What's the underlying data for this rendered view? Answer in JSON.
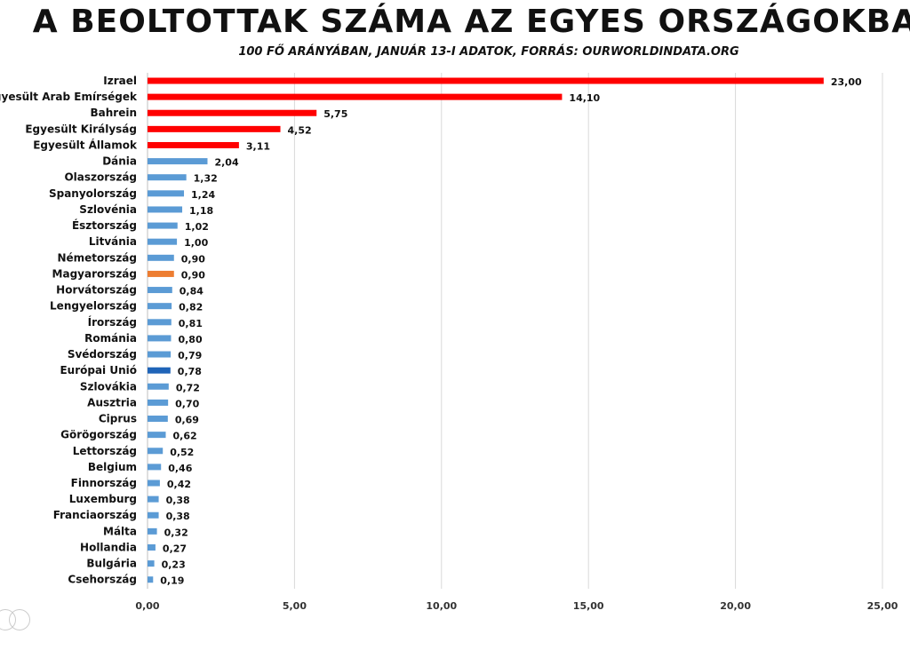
{
  "header": {
    "title": "A BEOLTOTTAK SZÁMA AZ EGYES ORSZÁGOKBAN",
    "subtitle": "100 FŐ ARÁNYÁBAN, JANUÁR 13-I ADATOK, FORRÁS: OURWORLDINDATA.ORG"
  },
  "chart_data": {
    "type": "bar",
    "orientation": "horizontal",
    "title": "A BEOLTOTTAK SZÁMA AZ EGYES ORSZÁGOKBAN",
    "subtitle": "100 FŐ ARÁNYÁBAN, JANUÁR 13-I ADATOK, FORRÁS: OURWORLDINDATA.ORG",
    "categories": [
      "Izrael",
      "Egyesült Arab Emírségek",
      "Bahrein",
      "Egyesült Királyság",
      "Egyesült Államok",
      "Dánia",
      "Olaszország",
      "Spanyolország",
      "Szlovénia",
      "Észtország",
      "Litvánia",
      "Németország",
      "Magyarország",
      "Horvátország",
      "Lengyelország",
      "Írország",
      "Románia",
      "Svédország",
      "Európai Unió",
      "Szlovákia",
      "Ausztria",
      "Ciprus",
      "Görögország",
      "Lettország",
      "Belgium",
      "Finnország",
      "Luxemburg",
      "Franciaország",
      "Málta",
      "Hollandia",
      "Bulgária",
      "Csehország"
    ],
    "values": [
      23.0,
      14.1,
      5.75,
      4.52,
      3.11,
      2.04,
      1.32,
      1.24,
      1.18,
      1.02,
      1.0,
      0.9,
      0.9,
      0.84,
      0.82,
      0.81,
      0.8,
      0.79,
      0.78,
      0.72,
      0.7,
      0.69,
      0.62,
      0.52,
      0.46,
      0.42,
      0.38,
      0.38,
      0.32,
      0.27,
      0.23,
      0.19
    ],
    "value_labels": [
      "23,00",
      "14,10",
      "5,75",
      "4,52",
      "3,11",
      "2,04",
      "1,32",
      "1,24",
      "1,18",
      "1,02",
      "1,00",
      "0,90",
      "0,90",
      "0,84",
      "0,82",
      "0,81",
      "0,80",
      "0,79",
      "0,78",
      "0,72",
      "0,70",
      "0,69",
      "0,62",
      "0,52",
      "0,46",
      "0,42",
      "0,38",
      "0,38",
      "0,32",
      "0,27",
      "0,23",
      "0,19"
    ],
    "bar_colors": [
      "#ff0000",
      "#ff0000",
      "#ff0000",
      "#ff0000",
      "#ff0000",
      "#5b9bd5",
      "#5b9bd5",
      "#5b9bd5",
      "#5b9bd5",
      "#5b9bd5",
      "#5b9bd5",
      "#5b9bd5",
      "#ed7d31",
      "#5b9bd5",
      "#5b9bd5",
      "#5b9bd5",
      "#5b9bd5",
      "#5b9bd5",
      "#1f64b8",
      "#5b9bd5",
      "#5b9bd5",
      "#5b9bd5",
      "#5b9bd5",
      "#5b9bd5",
      "#5b9bd5",
      "#5b9bd5",
      "#5b9bd5",
      "#5b9bd5",
      "#5b9bd5",
      "#5b9bd5",
      "#5b9bd5",
      "#5b9bd5"
    ],
    "xlim": [
      0,
      25
    ],
    "x_ticks": [
      0,
      5,
      10,
      15,
      20,
      25
    ],
    "x_tick_labels": [
      "0,00",
      "5,00",
      "10,00",
      "15,00",
      "20,00",
      "25,00"
    ],
    "grid": true
  }
}
